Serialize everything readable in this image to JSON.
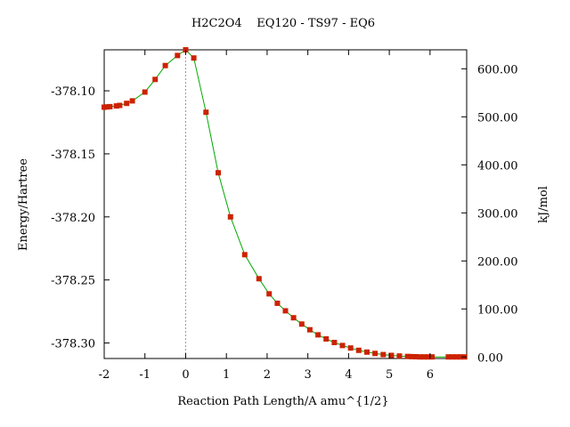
{
  "chart_data": {
    "type": "line",
    "title": "H2C2O4    EQ120 - TS97 - EQ6",
    "xlabel": "Reaction Path Length/A amu^{1/2}",
    "ylabel_left": "Energy/Hartree",
    "ylabel_right": "kJ/mol",
    "xlim": [
      -2,
      6.9
    ],
    "ylim": [
      -378.3123,
      -378.0675
    ],
    "ylim_right_kjmol": [
      -3.2,
      639.5
    ],
    "grid": false,
    "legend": "none",
    "x_ticks": [
      -2,
      -1,
      0,
      1,
      2,
      3,
      4,
      5,
      6
    ],
    "x_tick_labels": [
      "-2",
      "-1",
      "0",
      "1",
      "2",
      "3",
      "4",
      "5",
      "6"
    ],
    "y_left_ticks": [
      -378.1,
      -378.15,
      -378.2,
      -378.25,
      -378.3
    ],
    "y_left_tick_labels": [
      "-378.10",
      "-378.15",
      "-378.20",
      "-378.25",
      "-378.30"
    ],
    "y_right_ticks": [
      600,
      500,
      400,
      300,
      200,
      100,
      0
    ],
    "y_right_tick_labels": [
      "600.00",
      "500.00",
      "400.00",
      "300.00",
      "200.00",
      "100.00",
      "0.00"
    ],
    "ts_marker_x": 0,
    "colors": {
      "line": "#00aa00",
      "marker": "#cc2200",
      "ts_line": "#999999"
    },
    "points": [
      [
        -2.0,
        -378.113
      ],
      [
        -1.93,
        -378.1128
      ],
      [
        -1.86,
        -378.1126
      ],
      [
        -1.7,
        -378.112
      ],
      [
        -1.62,
        -378.1116
      ],
      [
        -1.45,
        -378.11
      ],
      [
        -1.31,
        -378.108
      ],
      [
        -1.0,
        -378.101
      ],
      [
        -0.75,
        -378.091
      ],
      [
        -0.5,
        -378.08
      ],
      [
        -0.2,
        -378.072
      ],
      [
        0.0,
        -378.0675
      ],
      [
        0.2,
        -378.074
      ],
      [
        0.5,
        -378.117
      ],
      [
        0.8,
        -378.165
      ],
      [
        1.1,
        -378.2
      ],
      [
        1.45,
        -378.23
      ],
      [
        1.8,
        -378.249
      ],
      [
        2.05,
        -378.261
      ],
      [
        2.25,
        -378.2685
      ],
      [
        2.45,
        -378.2745
      ],
      [
        2.65,
        -378.28
      ],
      [
        2.85,
        -378.285
      ],
      [
        3.05,
        -378.2895
      ],
      [
        3.25,
        -378.2935
      ],
      [
        3.45,
        -378.2968
      ],
      [
        3.65,
        -378.2996
      ],
      [
        3.85,
        -378.302
      ],
      [
        4.05,
        -378.304
      ],
      [
        4.25,
        -378.3058
      ],
      [
        4.45,
        -378.3072
      ],
      [
        4.65,
        -378.3083
      ],
      [
        4.85,
        -378.3092
      ],
      [
        5.05,
        -378.3098
      ],
      [
        5.25,
        -378.3103
      ],
      [
        5.45,
        -378.3107
      ],
      [
        5.55,
        -378.3108
      ],
      [
        5.65,
        -378.3109
      ],
      [
        5.75,
        -378.311
      ],
      [
        5.85,
        -378.311
      ],
      [
        5.95,
        -378.311
      ],
      [
        6.05,
        -378.311
      ],
      [
        6.45,
        -378.311
      ],
      [
        6.55,
        -378.311
      ],
      [
        6.65,
        -378.311
      ],
      [
        6.75,
        -378.311
      ],
      [
        6.85,
        -378.311
      ]
    ]
  }
}
